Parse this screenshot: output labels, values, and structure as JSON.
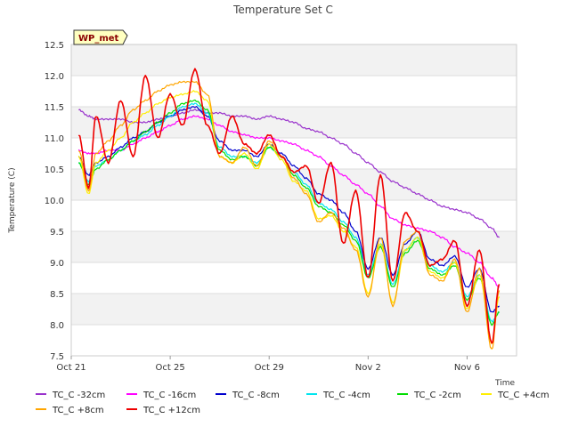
{
  "chart_data": {
    "type": "line",
    "title": "Temperature Set C",
    "xlabel": "Time",
    "ylabel": "Temperature (C)",
    "badge": "WP_met",
    "xlim": [
      0,
      18
    ],
    "ylim": [
      7.5,
      12.5
    ],
    "yticks": [
      7.5,
      8.0,
      8.5,
      9.0,
      9.5,
      10.0,
      10.5,
      11.0,
      11.5,
      12.0,
      12.5
    ],
    "ytick_labels": [
      "7.5",
      "8.0",
      "8.5",
      "9.0",
      "9.5",
      "10.0",
      "10.5",
      "11.0",
      "11.5",
      "12.0",
      "12.5"
    ],
    "xticks": [
      0,
      4,
      8,
      12,
      16
    ],
    "xtick_labels": [
      "Oct 21",
      "Oct 25",
      "Oct 29",
      "Nov 2",
      "Nov 6"
    ],
    "x": [
      0.3,
      0.7,
      1.0,
      1.5,
      2.0,
      2.5,
      3.0,
      3.5,
      4.0,
      4.5,
      5.0,
      5.5,
      6.0,
      6.5,
      7.0,
      7.5,
      8.0,
      8.5,
      9.0,
      9.5,
      10.0,
      10.5,
      11.0,
      11.5,
      12.0,
      12.5,
      13.0,
      13.5,
      14.0,
      14.5,
      15.0,
      15.5,
      16.0,
      16.5,
      17.0,
      17.3
    ],
    "series": [
      {
        "name": "TC_C -32cm",
        "color": "#9932cc",
        "values": [
          11.45,
          11.35,
          11.3,
          11.3,
          11.3,
          11.25,
          11.25,
          11.3,
          11.35,
          11.4,
          11.45,
          11.4,
          11.4,
          11.35,
          11.35,
          11.3,
          11.35,
          11.3,
          11.25,
          11.15,
          11.1,
          11.0,
          10.9,
          10.75,
          10.6,
          10.45,
          10.3,
          10.2,
          10.1,
          10.0,
          9.9,
          9.85,
          9.8,
          9.7,
          9.55,
          9.4
        ]
      },
      {
        "name": "TC_C -16cm",
        "color": "#ff00ff",
        "values": [
          10.8,
          10.75,
          10.75,
          10.8,
          10.8,
          10.9,
          11.0,
          11.1,
          11.2,
          11.3,
          11.35,
          11.3,
          11.2,
          11.1,
          11.05,
          11.0,
          11.0,
          10.95,
          10.9,
          10.8,
          10.7,
          10.55,
          10.4,
          10.25,
          10.1,
          9.9,
          9.7,
          9.6,
          9.55,
          9.5,
          9.4,
          9.25,
          9.15,
          9.0,
          8.75,
          8.6
        ]
      },
      {
        "name": "TC_C -8cm",
        "color": "#0000cd",
        "values": [
          10.7,
          10.4,
          10.6,
          10.7,
          10.85,
          11.0,
          11.1,
          11.25,
          11.35,
          11.45,
          11.5,
          11.35,
          10.95,
          10.8,
          10.8,
          10.7,
          10.9,
          10.75,
          10.55,
          10.35,
          10.1,
          10.0,
          9.8,
          9.5,
          8.9,
          9.4,
          8.8,
          9.3,
          9.5,
          9.05,
          8.95,
          9.1,
          8.6,
          8.9,
          8.2,
          8.3
        ]
      },
      {
        "name": "TC_C -4cm",
        "color": "#00e5ee",
        "values": [
          10.6,
          10.3,
          10.55,
          10.65,
          10.8,
          10.95,
          11.05,
          11.2,
          11.35,
          11.5,
          11.55,
          11.4,
          10.85,
          10.7,
          10.7,
          10.6,
          10.85,
          10.7,
          10.45,
          10.25,
          9.95,
          9.85,
          9.65,
          9.4,
          8.8,
          9.3,
          8.65,
          9.2,
          9.4,
          8.95,
          8.85,
          9.0,
          8.45,
          8.8,
          8.05,
          8.2
        ]
      },
      {
        "name": "TC_C -2cm",
        "color": "#00dd00",
        "values": [
          10.6,
          10.25,
          10.5,
          10.65,
          10.8,
          10.95,
          11.1,
          11.25,
          11.4,
          11.55,
          11.6,
          11.45,
          10.8,
          10.65,
          10.7,
          10.55,
          10.85,
          10.7,
          10.4,
          10.2,
          9.9,
          9.8,
          9.6,
          9.35,
          8.75,
          9.25,
          8.6,
          9.15,
          9.35,
          8.9,
          8.8,
          8.95,
          8.4,
          8.75,
          8.0,
          8.2
        ]
      },
      {
        "name": "TC_C +4cm",
        "color": "#ffee00",
        "values": [
          10.7,
          10.1,
          10.6,
          10.8,
          11.0,
          11.25,
          11.4,
          11.55,
          11.65,
          11.7,
          11.75,
          11.6,
          10.7,
          10.6,
          10.75,
          10.5,
          10.9,
          10.65,
          10.3,
          10.15,
          9.7,
          9.75,
          9.5,
          9.25,
          8.5,
          9.3,
          8.35,
          9.2,
          9.4,
          8.85,
          8.75,
          9.0,
          8.25,
          8.8,
          7.7,
          8.45
        ]
      },
      {
        "name": "TC_C +8cm",
        "color": "#ffa500",
        "values": [
          10.8,
          10.15,
          10.75,
          10.95,
          11.2,
          11.45,
          11.6,
          11.75,
          11.85,
          11.9,
          11.9,
          11.7,
          10.7,
          10.6,
          10.85,
          10.55,
          10.95,
          10.7,
          10.35,
          10.1,
          9.65,
          9.8,
          9.55,
          9.2,
          8.45,
          9.4,
          8.3,
          9.35,
          9.5,
          8.8,
          8.7,
          9.05,
          8.2,
          8.9,
          7.6,
          8.55
        ]
      },
      {
        "name": "TC_C +12cm",
        "color": "#ee0000",
        "values": [
          11.05,
          10.2,
          11.35,
          10.6,
          11.6,
          10.7,
          12.0,
          11.0,
          11.7,
          11.2,
          12.1,
          11.2,
          10.75,
          11.35,
          10.9,
          10.75,
          11.05,
          10.7,
          10.45,
          10.55,
          9.95,
          10.6,
          9.3,
          10.15,
          8.75,
          10.4,
          8.7,
          9.8,
          9.5,
          8.95,
          9.05,
          9.35,
          8.3,
          9.2,
          7.7,
          8.65
        ]
      }
    ],
    "legend_position": "bottom"
  }
}
